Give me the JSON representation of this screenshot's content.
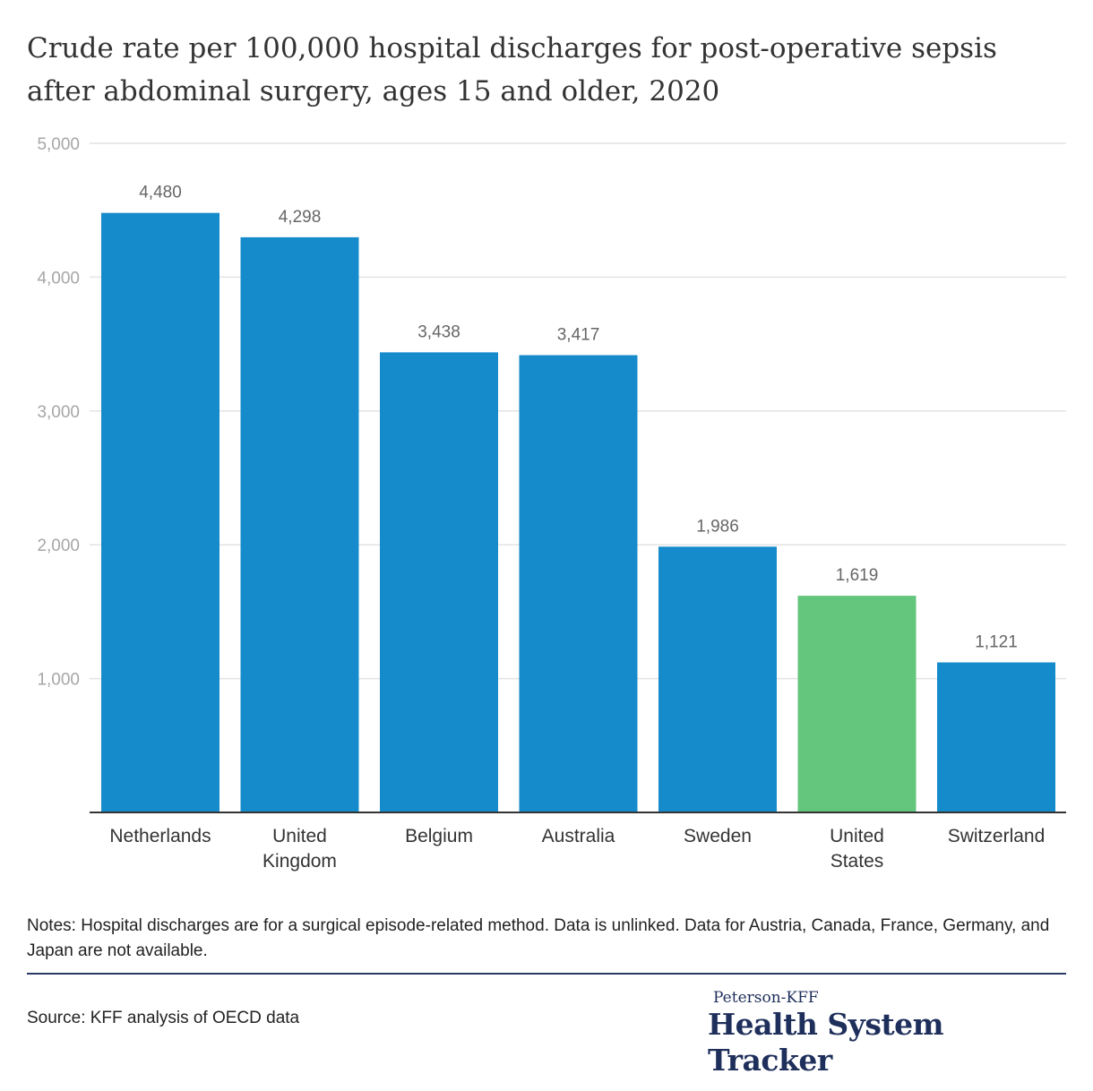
{
  "chart_data": {
    "type": "bar",
    "title": "Crude rate per 100,000 hospital discharges for post-operative sepsis after abdominal surgery, ages 15 and older, 2020",
    "categories": [
      "Netherlands",
      "United Kingdom",
      "Belgium",
      "Australia",
      "Sweden",
      "United States",
      "Switzerland"
    ],
    "category_lines": [
      [
        "Netherlands"
      ],
      [
        "United",
        "Kingdom"
      ],
      [
        "Belgium"
      ],
      [
        "Australia"
      ],
      [
        "Sweden"
      ],
      [
        "United",
        "States"
      ],
      [
        "Switzerland"
      ]
    ],
    "values": [
      4480,
      4298,
      3438,
      3417,
      1986,
      1619,
      1121
    ],
    "value_labels": [
      "4,480",
      "4,298",
      "3,438",
      "3,417",
      "1,986",
      "1,619",
      "1,121"
    ],
    "ylim": [
      0,
      5000
    ],
    "yticks": [
      1000,
      2000,
      3000,
      4000,
      5000
    ],
    "ytick_labels": [
      "1,000",
      "2,000",
      "3,000",
      "4,000",
      "5,000"
    ],
    "xlabel": "",
    "ylabel": "",
    "grid": true,
    "colors": {
      "default": "#168bcb",
      "highlight": "#64c57c",
      "highlight_category": "United States",
      "grid": "#e3e3e3",
      "axis": "#333333"
    }
  },
  "notes": "Notes: Hospital discharges are for a surgical episode-related method. Data is unlinked. Data for Austria, Canada, France, Germany, and Japan are not available.",
  "source": "Source: KFF analysis of OECD data",
  "brand": {
    "top": "Peterson-KFF",
    "main": "Health System Tracker"
  }
}
